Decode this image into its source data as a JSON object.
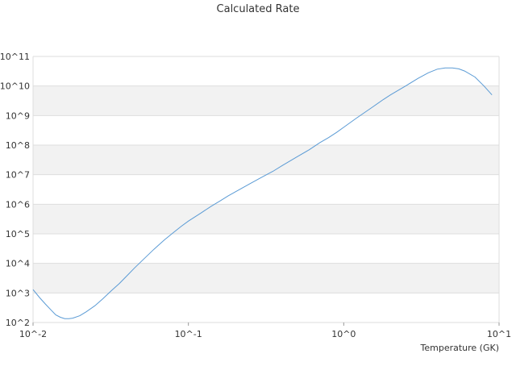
{
  "chart_data": {
    "type": "line",
    "title": "Calculated Rate",
    "xlabel": "Temperature (GK)",
    "ylabel": "",
    "x_scale": "log",
    "y_scale": "log",
    "xlim": [
      0.01,
      10
    ],
    "ylim": [
      100,
      100000000000
    ],
    "x_ticks": [
      {
        "value": 0.01,
        "label": "10^-2"
      },
      {
        "value": 0.1,
        "label": "10^-1"
      },
      {
        "value": 1,
        "label": "10^0"
      },
      {
        "value": 10,
        "label": "10^1"
      }
    ],
    "y_ticks": [
      {
        "value": 100,
        "label": "10^2"
      },
      {
        "value": 1000,
        "label": "10^3"
      },
      {
        "value": 10000,
        "label": "10^4"
      },
      {
        "value": 100000,
        "label": "10^5"
      },
      {
        "value": 1000000,
        "label": "10^6"
      },
      {
        "value": 10000000,
        "label": "10^7"
      },
      {
        "value": 100000000,
        "label": "10^8"
      },
      {
        "value": 1000000000,
        "label": "10^9"
      },
      {
        "value": 10000000000,
        "label": "10^10"
      },
      {
        "value": 100000000000,
        "label": "10^11"
      }
    ],
    "grid": true,
    "banded_background": true,
    "legend": "none",
    "colors": {
      "line": "#5b9bd5",
      "band": "#f2f2f2",
      "grid": "#dddddd",
      "text": "#333333"
    },
    "series": [
      {
        "x": [
          0.01,
          0.011,
          0.012,
          0.013,
          0.014,
          0.015,
          0.016,
          0.017,
          0.018,
          0.02,
          0.022,
          0.025,
          0.028,
          0.032,
          0.036,
          0.04,
          0.045,
          0.05,
          0.06,
          0.07,
          0.08,
          0.09,
          0.1,
          0.12,
          0.14,
          0.16,
          0.18,
          0.2,
          0.25,
          0.3,
          0.35,
          0.4,
          0.5,
          0.6,
          0.7,
          0.8,
          0.9,
          1.0,
          1.2,
          1.5,
          1.8,
          2.0,
          2.5,
          3.0,
          3.5,
          4.0,
          4.5,
          5.0,
          5.5,
          6.0,
          7.0,
          8.0,
          9.0
        ],
        "y": [
          1300,
          700,
          420,
          270,
          180,
          150,
          135,
          135,
          140,
          170,
          230,
          370,
          620,
          1200,
          2100,
          3700,
          7000,
          12000,
          30000,
          62000,
          110000,
          180000,
          270000,
          500000,
          850000,
          1300000,
          1900000,
          2600000,
          5000000,
          8500000,
          13000000,
          20000000,
          40000000,
          70000000,
          120000000,
          180000000,
          270000000,
          400000000,
          800000000,
          1800000000,
          3500000000,
          5000000000,
          10000000000,
          18000000000,
          28000000000,
          37000000000,
          41000000000,
          41000000000,
          38000000000,
          32000000000,
          20000000000,
          10000000000,
          5000000000
        ]
      }
    ]
  }
}
